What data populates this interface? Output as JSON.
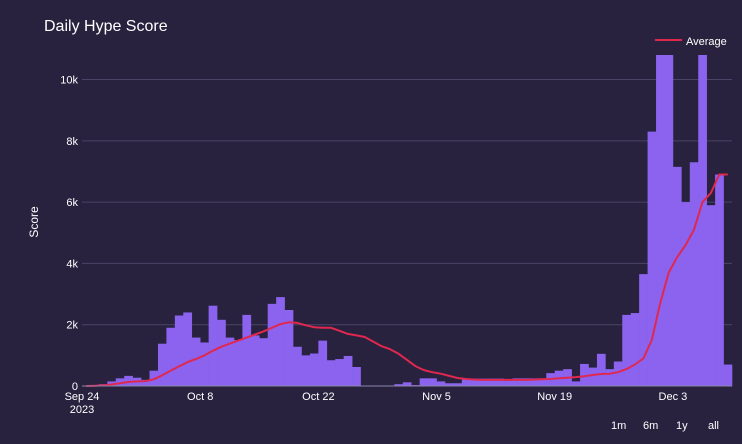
{
  "chart_data": {
    "type": "bar",
    "title": "Daily Hype Score",
    "xlabel": "",
    "ylabel": "Score",
    "ylim": [
      0,
      10800
    ],
    "y_ticks": [
      0,
      2000,
      4000,
      6000,
      8000,
      10000
    ],
    "y_tick_labels": [
      "0",
      "2k",
      "4k",
      "6k",
      "8k",
      "10k"
    ],
    "x_start": "2023-09-24",
    "x_ticks": [
      {
        "date": "2023-09-24",
        "label": "Sep 24",
        "sublabel": "2023"
      },
      {
        "date": "2023-10-08",
        "label": "Oct 8",
        "sublabel": ""
      },
      {
        "date": "2023-10-22",
        "label": "Oct 22",
        "sublabel": ""
      },
      {
        "date": "2023-11-05",
        "label": "Nov 5",
        "sublabel": ""
      },
      {
        "date": "2023-11-19",
        "label": "Nov 19",
        "sublabel": ""
      },
      {
        "date": "2023-12-03",
        "label": "Dec 3",
        "sublabel": ""
      }
    ],
    "grid": true,
    "legend": {
      "position": "top-right"
    },
    "series": [
      {
        "type": "bar",
        "color": "#8b63ef",
        "values": [
          0,
          20,
          60,
          150,
          250,
          330,
          270,
          200,
          500,
          1380,
          1900,
          2300,
          2400,
          1580,
          1420,
          2620,
          2160,
          1580,
          1500,
          2320,
          1650,
          1560,
          2680,
          2900,
          2480,
          1280,
          1000,
          1060,
          1480,
          840,
          880,
          980,
          620,
          0,
          0,
          0,
          0,
          60,
          120,
          30,
          250,
          250,
          150,
          90,
          90,
          240,
          240,
          240,
          240,
          240,
          170,
          250,
          250,
          250,
          250,
          420,
          500,
          550,
          150,
          720,
          600,
          1050,
          550,
          800,
          2320,
          2380,
          3650,
          8300,
          10800,
          10800,
          7150,
          6000,
          7300,
          10800,
          5900,
          6900,
          700
        ]
      },
      {
        "type": "line",
        "name": "Average",
        "color": "#e0284f",
        "values": [
          0,
          5,
          20,
          50,
          90,
          130,
          150,
          160,
          220,
          350,
          500,
          640,
          780,
          880,
          1000,
          1150,
          1280,
          1380,
          1480,
          1580,
          1680,
          1780,
          1900,
          2020,
          2080,
          2060,
          1980,
          1920,
          1900,
          1900,
          1800,
          1700,
          1650,
          1600,
          1450,
          1300,
          1200,
          1050,
          850,
          650,
          520,
          450,
          400,
          330,
          260,
          230,
          210,
          200,
          200,
          200,
          200,
          200,
          200,
          210,
          220,
          230,
          250,
          270,
          290,
          320,
          360,
          390,
          400,
          450,
          550,
          700,
          900,
          1500,
          2700,
          3700,
          4200,
          4600,
          5100,
          6000,
          6300,
          6900,
          6900
        ]
      }
    ]
  },
  "range_buttons": [
    "1m",
    "6m",
    "1y",
    "all"
  ]
}
